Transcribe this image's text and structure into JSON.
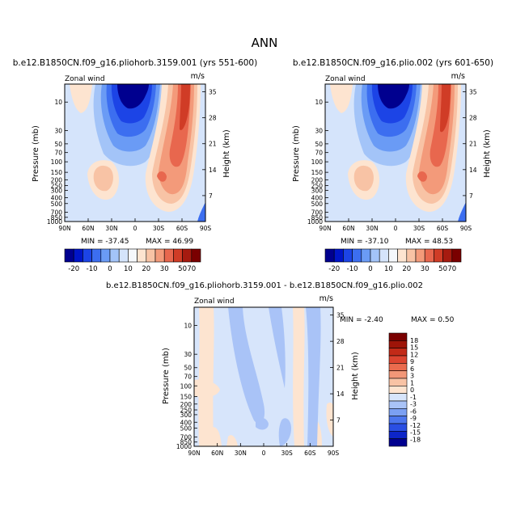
{
  "page": {
    "title": "ANN"
  },
  "chart_data": [
    {
      "type": "heatmap",
      "title": "b.e12.B1850CN.f09_g16.pliohorb.3159.001 (yrs 551-600)",
      "left_label": "Zonal wind",
      "units": "m/s",
      "ylabel": "Pressure (mb)",
      "ylabel_right": "Height (km)",
      "x_ticks": [
        "90N",
        "60N",
        "30N",
        "0",
        "30S",
        "60S",
        "90S"
      ],
      "y_ticks": [
        "10",
        "30",
        "50",
        "70",
        "100",
        "150",
        "200",
        "250",
        "300",
        "400",
        "500",
        "700",
        "850",
        "1000"
      ],
      "y_ticks_right": [
        "35",
        "28",
        "21",
        "14",
        "7"
      ],
      "min_label": "MIN = -37.45",
      "max_label": "MAX = 46.99",
      "min": -37.45,
      "max": 46.99,
      "colorbar_labels": [
        "-20",
        "-10",
        "0",
        "10",
        "20",
        "30",
        "50",
        "70"
      ]
    },
    {
      "type": "heatmap",
      "title": "b.e12.B1850CN.f09_g16.plio.002 (yrs 601-650)",
      "left_label": "Zonal wind",
      "units": "m/s",
      "ylabel": "Pressure (mb)",
      "ylabel_right": "Height (km)",
      "x_ticks": [
        "90N",
        "60N",
        "30N",
        "0",
        "30S",
        "60S",
        "90S"
      ],
      "y_ticks": [
        "10",
        "30",
        "50",
        "70",
        "100",
        "150",
        "200",
        "250",
        "300",
        "400",
        "500",
        "700",
        "850",
        "1000"
      ],
      "y_ticks_right": [
        "35",
        "28",
        "21",
        "14",
        "7"
      ],
      "min_label": "MIN = -37.10",
      "max_label": "MAX = 48.53",
      "min": -37.1,
      "max": 48.53,
      "colorbar_labels": [
        "-20",
        "-10",
        "0",
        "10",
        "20",
        "30",
        "50",
        "70"
      ]
    },
    {
      "type": "heatmap",
      "title": "b.e12.B1850CN.f09_g16.pliohorb.3159.001 - b.e12.B1850CN.f09_g16.plio.002",
      "left_label": "Zonal wind",
      "units": "m/s",
      "ylabel": "Pressure (mb)",
      "ylabel_right": "Height (km)",
      "x_ticks": [
        "90N",
        "60N",
        "30N",
        "0",
        "30S",
        "60S",
        "90S"
      ],
      "y_ticks": [
        "10",
        "30",
        "50",
        "70",
        "100",
        "150",
        "200",
        "250",
        "300",
        "400",
        "500",
        "700",
        "850",
        "1000"
      ],
      "y_ticks_right": [
        "35",
        "28",
        "21",
        "14",
        "7"
      ],
      "min_label": "MIN = -2.40",
      "max_label": "MAX = 0.50",
      "min": -2.4,
      "max": 0.5,
      "colorbar_labels": [
        "18",
        "15",
        "12",
        "9",
        "6",
        "3",
        "1",
        "0",
        "-1",
        "-3",
        "-6",
        "-9",
        "-12",
        "-15",
        "-18"
      ]
    }
  ],
  "colors": {
    "levels_abs": [
      "#00008f",
      "#0015c8",
      "#1c44e6",
      "#3c6ef0",
      "#6a9bf5",
      "#a3c4f8",
      "#d5e4fb",
      "#f5f8fc",
      "#fde4d0",
      "#f8c3a5",
      "#f39a7a",
      "#e8674e",
      "#d03c26",
      "#a61b10",
      "#7a0000"
    ],
    "levels_diff": [
      "#00008f",
      "#0d25c8",
      "#2a4fe3",
      "#4c76ee",
      "#7ba0f3",
      "#a9c3f7",
      "#d7e5fb",
      "#fde4d0",
      "#f8c3a5",
      "#f29778",
      "#ea6b4e",
      "#dc4430",
      "#c22a18",
      "#9e1408",
      "#7a0000"
    ]
  }
}
